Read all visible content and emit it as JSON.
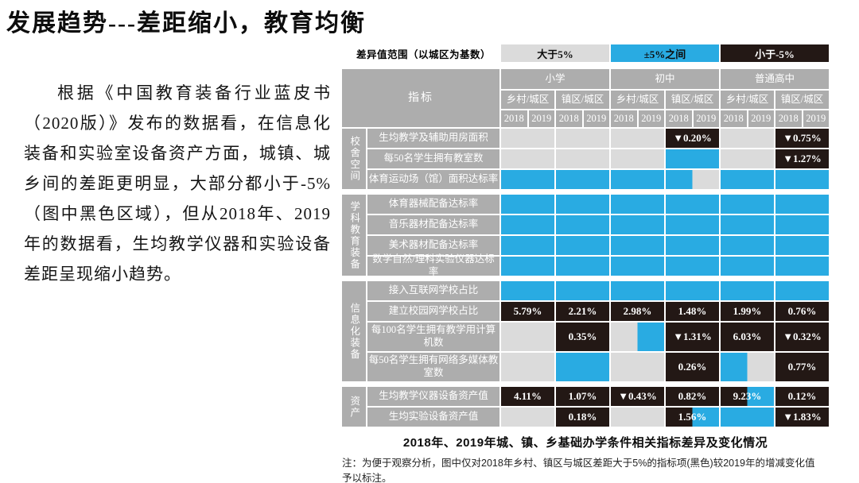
{
  "page": {
    "title": "发展趋势---差距缩小，教育均衡"
  },
  "left_text": {
    "paragraph": "根据《中国教育装备行业蓝皮书（2020版）》发布的数据看，在信息化装备和实验室设备资产方面，城镇、城乡间的差距更明显，大部分都小于-5%（图中黑色区域），但从2018年、2019年的数据看，生均教学仪器和实验设备差距呈现缩小趋势。"
  },
  "chart_data": {
    "type": "heatmap",
    "title": "2018年、2019年城、镇、乡基础办学条件相关指标差异及变化情况",
    "note": "注：为便于观察分析，图中仅对2018年乡村、镇区与城区差距大于5%的指标项(黑色)较2019年的增减变化值予以标注。",
    "legend": {
      "label": "差异值范围（以城区为基数）",
      "items": [
        {
          "text": "大于5%",
          "key": "gray"
        },
        {
          "text": "±5%之间",
          "key": "blue"
        },
        {
          "text": "小于-5%",
          "key": "black"
        }
      ]
    },
    "palette": {
      "gray": "#dbdbdb",
      "blue": "#29abe2",
      "black": "#231815",
      "header": "#adadad"
    },
    "category_meaning": {
      "gray": "大于5%",
      "blue": "±5%之间",
      "black": "小于-5%"
    },
    "header": {
      "indicator_label": "指标",
      "levels": [
        "小学",
        "初中",
        "普通高中"
      ],
      "area_pairs": [
        "乡村/城区",
        "镇区/城区"
      ],
      "years": [
        "2018",
        "2019"
      ]
    },
    "groups": [
      {
        "name": "校舍空间",
        "row_count": 3
      },
      {
        "name": "学科教育装备",
        "row_count": 4
      },
      {
        "name": "信息化装备",
        "row_count": 4
      },
      {
        "name": "资产",
        "row_count": 2
      }
    ],
    "rows": [
      {
        "indicator": "生均教学及辅助用房面积",
        "tall": false,
        "pairs": [
          [
            "gray",
            "gray",
            null
          ],
          [
            "gray",
            "gray",
            null
          ],
          [
            "gray",
            "gray",
            null
          ],
          [
            "black",
            "black",
            "▼0.20%"
          ],
          [
            "gray",
            "gray",
            null
          ],
          [
            "black",
            "black",
            "▼0.75%"
          ]
        ]
      },
      {
        "indicator": "每50名学生拥有教室数",
        "tall": false,
        "pairs": [
          [
            "gray",
            "gray",
            null
          ],
          [
            "gray",
            "gray",
            null
          ],
          [
            "gray",
            "gray",
            null
          ],
          [
            "blue",
            "blue",
            null
          ],
          [
            "gray",
            "gray",
            null
          ],
          [
            "black",
            "black",
            "▼1.27%"
          ]
        ]
      },
      {
        "indicator": "体育运动场（馆）面积达标率",
        "tall": false,
        "pairs": [
          [
            "blue",
            "blue",
            null
          ],
          [
            "blue",
            "blue",
            null
          ],
          [
            "blue",
            "blue",
            null
          ],
          [
            "blue",
            "gray",
            null
          ],
          [
            "blue",
            "blue",
            null
          ],
          [
            "blue",
            "blue",
            null
          ]
        ]
      },
      {
        "indicator": "体育器械配备达标率",
        "tall": false,
        "pairs": [
          [
            "blue",
            "blue",
            null
          ],
          [
            "blue",
            "blue",
            null
          ],
          [
            "blue",
            "blue",
            null
          ],
          [
            "blue",
            "blue",
            null
          ],
          [
            "blue",
            "blue",
            null
          ],
          [
            "blue",
            "blue",
            null
          ]
        ]
      },
      {
        "indicator": "音乐器材配备达标率",
        "tall": false,
        "pairs": [
          [
            "blue",
            "blue",
            null
          ],
          [
            "blue",
            "blue",
            null
          ],
          [
            "blue",
            "blue",
            null
          ],
          [
            "blue",
            "blue",
            null
          ],
          [
            "blue",
            "blue",
            null
          ],
          [
            "blue",
            "blue",
            null
          ]
        ]
      },
      {
        "indicator": "美术器材配备达标率",
        "tall": false,
        "pairs": [
          [
            "blue",
            "blue",
            null
          ],
          [
            "blue",
            "blue",
            null
          ],
          [
            "blue",
            "blue",
            null
          ],
          [
            "blue",
            "blue",
            null
          ],
          [
            "blue",
            "blue",
            null
          ],
          [
            "blue",
            "blue",
            null
          ]
        ]
      },
      {
        "indicator": "数学自然/理科实验仪器达标率",
        "tall": false,
        "pairs": [
          [
            "blue",
            "blue",
            null
          ],
          [
            "blue",
            "blue",
            null
          ],
          [
            "blue",
            "blue",
            null
          ],
          [
            "blue",
            "blue",
            null
          ],
          [
            "blue",
            "blue",
            null
          ],
          [
            "blue",
            "blue",
            null
          ]
        ]
      },
      {
        "indicator": "接入互联网学校占比",
        "tall": false,
        "pairs": [
          [
            "blue",
            "blue",
            null
          ],
          [
            "blue",
            "blue",
            null
          ],
          [
            "blue",
            "blue",
            null
          ],
          [
            "blue",
            "blue",
            null
          ],
          [
            "blue",
            "blue",
            null
          ],
          [
            "blue",
            "blue",
            null
          ]
        ]
      },
      {
        "indicator": "建立校园网学校占比",
        "tall": false,
        "pairs": [
          [
            "black",
            "black",
            "5.79%"
          ],
          [
            "black",
            "black",
            "2.21%"
          ],
          [
            "black",
            "black",
            "2.98%"
          ],
          [
            "black",
            "black",
            "1.48%"
          ],
          [
            "black",
            "black",
            "1.99%"
          ],
          [
            "black",
            "black",
            "0.76%"
          ]
        ]
      },
      {
        "indicator": "每100名学生拥有教学用计算机数",
        "tall": true,
        "pairs": [
          [
            "gray",
            "gray",
            null
          ],
          [
            "black",
            "black",
            "0.35%"
          ],
          [
            "gray",
            "blue",
            null
          ],
          [
            "black",
            "black",
            "▼1.31%"
          ],
          [
            "black",
            "black",
            "6.03%"
          ],
          [
            "black",
            "black",
            "▼0.32%"
          ]
        ]
      },
      {
        "indicator": "每50名学生拥有网络多媒体教室数",
        "tall": true,
        "pairs": [
          [
            "gray",
            "gray",
            null
          ],
          [
            "blue",
            "blue",
            null
          ],
          [
            "gray",
            "gray",
            null
          ],
          [
            "black",
            "black",
            "0.26%"
          ],
          [
            "blue",
            "gray",
            null
          ],
          [
            "black",
            "black",
            "0.77%"
          ]
        ]
      },
      {
        "indicator": "生均教学仪器设备资产值",
        "tall": false,
        "pairs": [
          [
            "black",
            "black",
            "4.11%"
          ],
          [
            "black",
            "black",
            "1.07%"
          ],
          [
            "black",
            "black",
            "▼0.43%"
          ],
          [
            "black",
            "black",
            "0.82%"
          ],
          [
            "black",
            "blue",
            "9.23%"
          ],
          [
            "black",
            "black",
            "0.12%"
          ]
        ]
      },
      {
        "indicator": "生均实验设备资产值",
        "tall": false,
        "pairs": [
          [
            "gray",
            "gray",
            null
          ],
          [
            "black",
            "black",
            "0.18%"
          ],
          [
            "gray",
            "gray",
            null
          ],
          [
            "black",
            "blue",
            "1.56%"
          ],
          [
            "blue",
            "blue",
            null
          ],
          [
            "black",
            "black",
            "▼1.83%"
          ]
        ]
      }
    ]
  }
}
